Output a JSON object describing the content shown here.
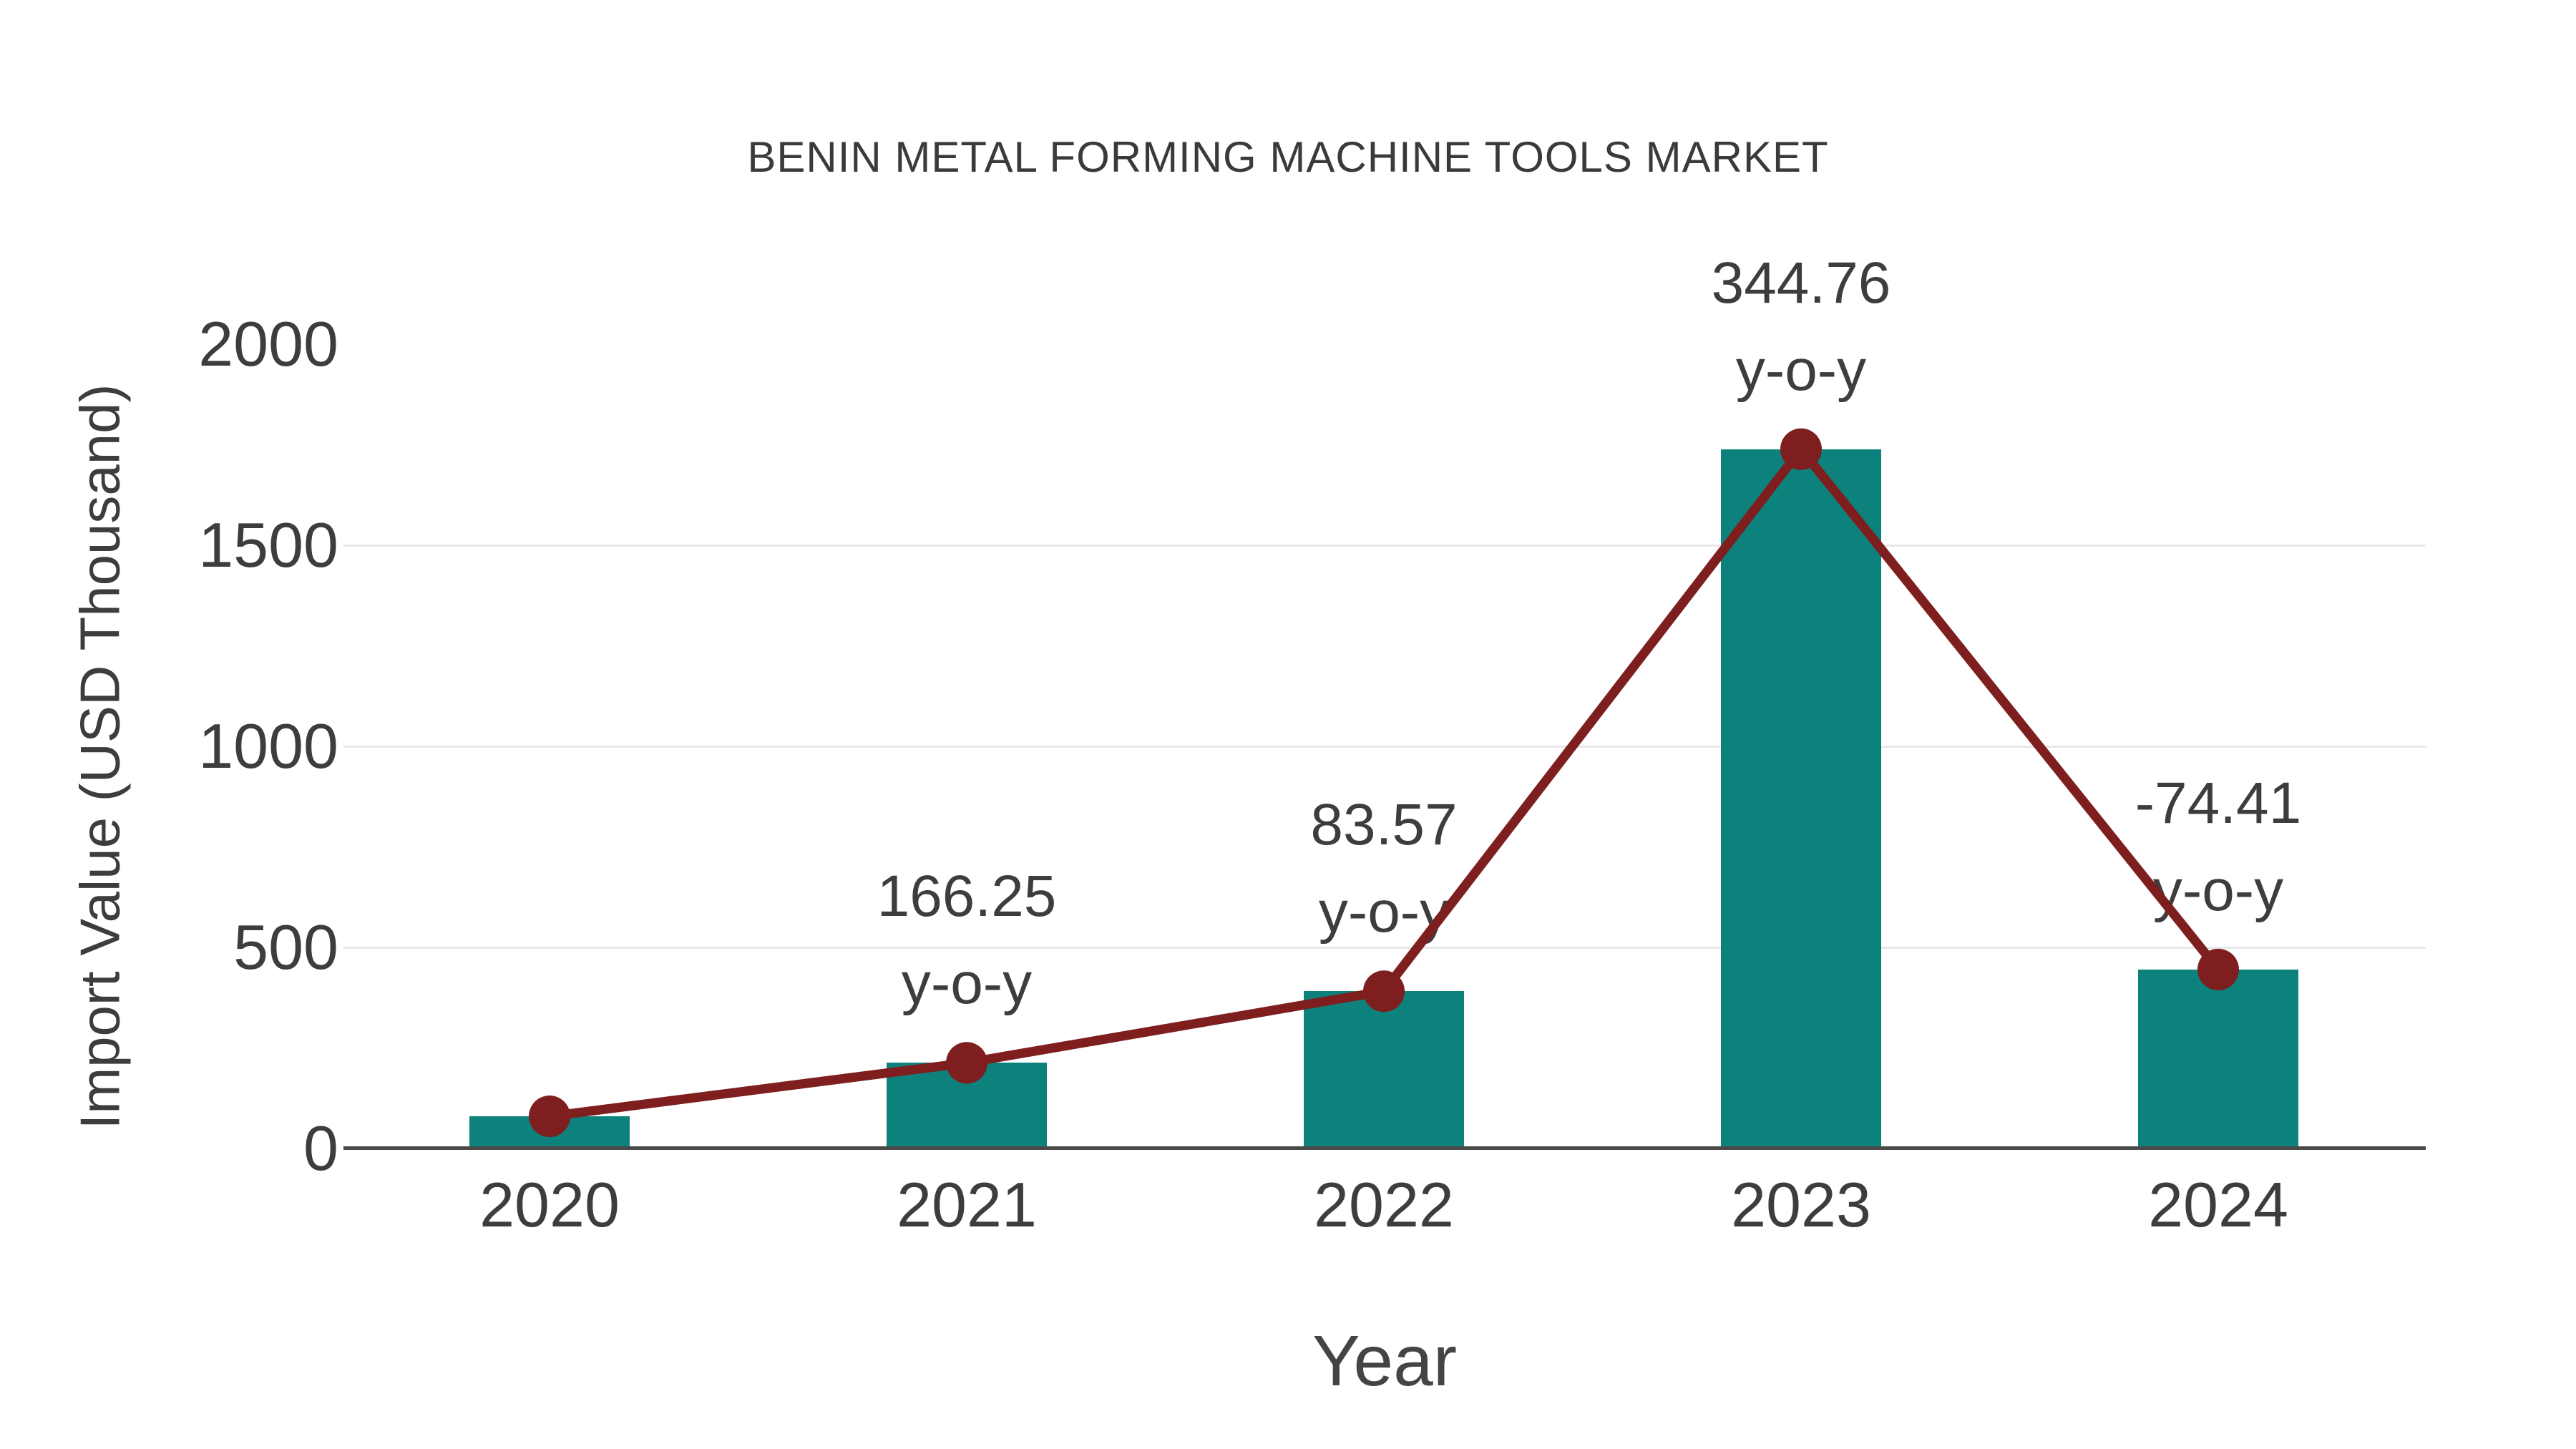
{
  "title": "BENIN METAL FORMING MACHINE TOOLS MARKET",
  "y_axis": {
    "label": "Import Value (USD Thousand)",
    "tick_labels": [
      "0",
      "500",
      "1000",
      "1500",
      "2000"
    ]
  },
  "x_axis": {
    "label": "Year",
    "tick_labels": [
      "2020",
      "2021",
      "2022",
      "2023",
      "2024"
    ]
  },
  "colors": {
    "bar": "#0d817b",
    "line": "#7e1e1e",
    "text": "#3d3d3d",
    "grid": "#e8e8e8",
    "axis": "#4a4a4a"
  },
  "chart_data": {
    "type": "bar",
    "title": "BENIN METAL FORMING MACHINE TOOLS MARKET",
    "xlabel": "Year",
    "ylabel": "Import Value (USD Thousand)",
    "categories": [
      "2020",
      "2021",
      "2022",
      "2023",
      "2024"
    ],
    "series": [
      {
        "name": "Import Value (USD Thousand)",
        "type": "bar",
        "color": "#0d817b",
        "values": [
          80,
          213,
          391,
          1739,
          445
        ]
      },
      {
        "name": "Import Value trend line",
        "type": "line",
        "color": "#7e1e1e",
        "values": [
          80,
          213,
          391,
          1739,
          445
        ]
      }
    ],
    "yticks": [
      0,
      500,
      1000,
      1500,
      2000
    ],
    "ylim": [
      0,
      2000
    ],
    "grid": true,
    "legend_position": "none",
    "annotations": [
      {
        "category": "2021",
        "value_label": "166.25",
        "suffix": "y-o-y"
      },
      {
        "category": "2022",
        "value_label": "83.57",
        "suffix": "y-o-y"
      },
      {
        "category": "2023",
        "value_label": "344.76",
        "suffix": "y-o-y"
      },
      {
        "category": "2024",
        "value_label": "-74.41",
        "suffix": "y-o-y"
      }
    ]
  }
}
